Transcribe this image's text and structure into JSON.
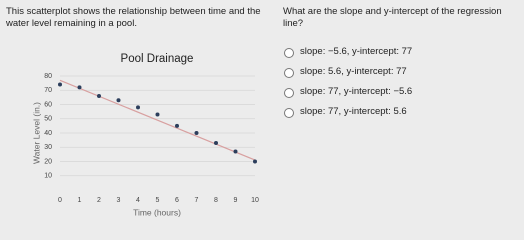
{
  "question": {
    "prompt": "This scatterplot shows the relationship between time and the water level remaining in a pool.",
    "ask": "What are the slope and y-intercept of the regression line?",
    "options": [
      "slope: −5.6, y-intercept: 77",
      "slope: 5.6, y-intercept: 77",
      "slope: 77, y-intercept: −5.6",
      "slope: 77, y-intercept: 5.6"
    ]
  },
  "chart_data": {
    "type": "scatter",
    "title": "Pool Drainage",
    "x_label": "Time (hours)",
    "y_label": "Water Level (in.)",
    "x": [
      0,
      1,
      2,
      3,
      4,
      5,
      6,
      7,
      8,
      9,
      10
    ],
    "values": [
      74,
      72,
      66,
      63,
      58,
      53,
      45,
      40,
      33,
      27,
      20
    ],
    "color": "#2c3e5c",
    "trendline": {
      "x": [
        0,
        10
      ],
      "values": [
        77,
        21
      ],
      "color": "#d8a0a0"
    },
    "xlim": [
      0,
      10
    ],
    "ylim": [
      0,
      80
    ],
    "xticks": [
      0,
      1,
      2,
      3,
      4,
      5,
      6,
      7,
      8,
      9,
      10
    ],
    "yticks": [
      10,
      20,
      30,
      40,
      50,
      60,
      70,
      80
    ],
    "grid": true
  }
}
